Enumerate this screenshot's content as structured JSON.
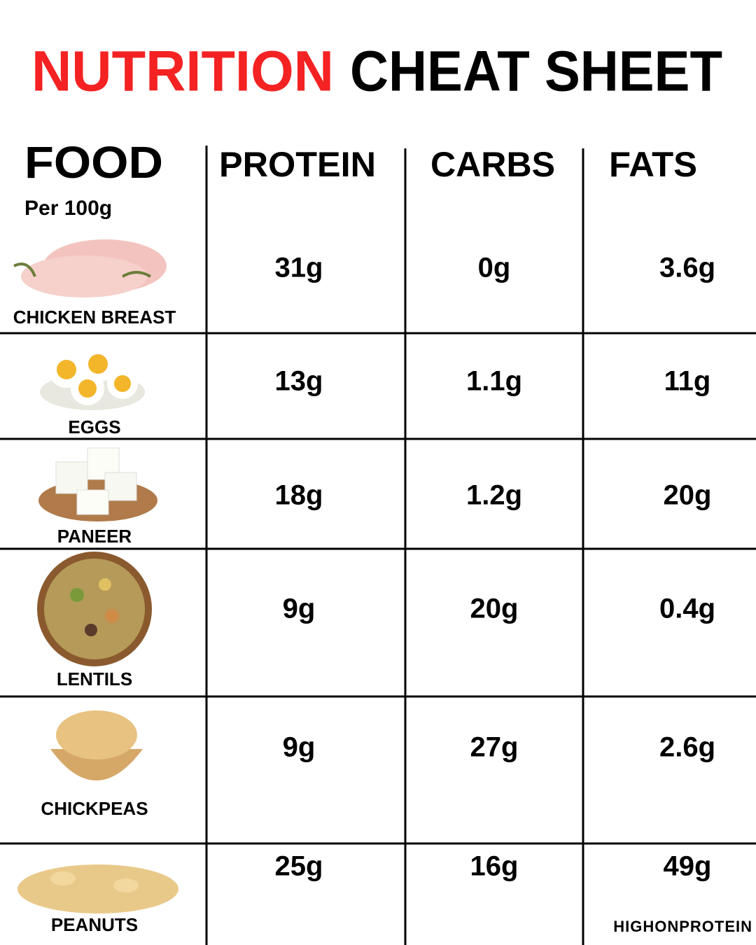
{
  "header": {
    "title_highlight": "NUTRITION",
    "title_rest": "CHEAT SHEET"
  },
  "table": {
    "columns": [
      "FOOD",
      "PROTEIN",
      "CARBS",
      "FATS"
    ],
    "unit_note": "Per 100g",
    "rows": [
      [
        "CHICKEN BREAST",
        "31g",
        "0g",
        "3.6g"
      ],
      [
        "EGGS",
        "13g",
        "1.1g",
        "11g"
      ],
      [
        "PANEER",
        "18g",
        "1.2g",
        "20g"
      ],
      [
        "LENTILS",
        "9g",
        "20g",
        "0.4g"
      ],
      [
        "CHICKPEAS",
        "9g",
        "27g",
        "2.6g"
      ],
      [
        "PEANUTS",
        "25g",
        "16g",
        "49g"
      ]
    ]
  },
  "footer": {
    "brand": "HIGHONPROTEIN"
  }
}
